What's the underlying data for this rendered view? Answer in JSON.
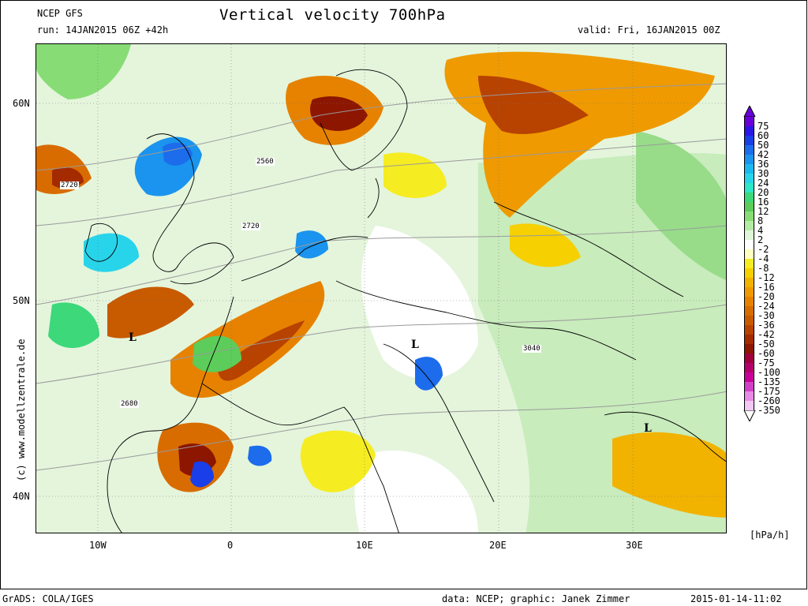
{
  "header": {
    "model": "NCEP GFS",
    "run": "run: 14JAN2015 06Z +42h",
    "title": "Vertical velocity 700hPa",
    "valid": "valid: Fri, 16JAN2015 00Z"
  },
  "axes": {
    "lat_labels": [
      "60N",
      "50N",
      "40N"
    ],
    "lon_labels": [
      "10W",
      "0",
      "10E",
      "20E",
      "30E"
    ]
  },
  "map": {
    "contour_labels": [
      "2720",
      "2560",
      "2720",
      "2680",
      "3040"
    ],
    "pressure_marks": [
      "L",
      "L",
      "L"
    ]
  },
  "colorbar": {
    "unit": "[hPa/h]",
    "labels": [
      "75",
      "60",
      "50",
      "42",
      "36",
      "30",
      "24",
      "20",
      "16",
      "12",
      "8",
      "4",
      "2",
      "-2",
      "-4",
      "-8",
      "-12",
      "-16",
      "-20",
      "-24",
      "-30",
      "-36",
      "-42",
      "-50",
      "-60",
      "-75",
      "-100",
      "-135",
      "-175",
      "-260",
      "-350"
    ],
    "colors": [
      "#6a00d8",
      "#2c16e6",
      "#1a3ee8",
      "#1c6cec",
      "#1a94ee",
      "#1cb8f0",
      "#28d4ea",
      "#2ee6c8",
      "#3cd87a",
      "#5ccc5a",
      "#88dc76",
      "#b4eca4",
      "#e0f6d8",
      "#ffffff",
      "#ffffc0",
      "#f6ec22",
      "#f6d000",
      "#f2b200",
      "#ef9a00",
      "#e68200",
      "#d86c00",
      "#c85a00",
      "#b84200",
      "#a42a00",
      "#8c1600",
      "#a0003c",
      "#b4006a",
      "#c8009a",
      "#d040c8",
      "#e88ae6",
      "#f4c8f4"
    ]
  },
  "watermark": "(c) www.modellzentrale.de",
  "footer": {
    "left": "GrADS: COLA/IGES",
    "credit": "data: NCEP; graphic: Janek Zimmer",
    "timestamp": "2015-01-14-11:02"
  }
}
